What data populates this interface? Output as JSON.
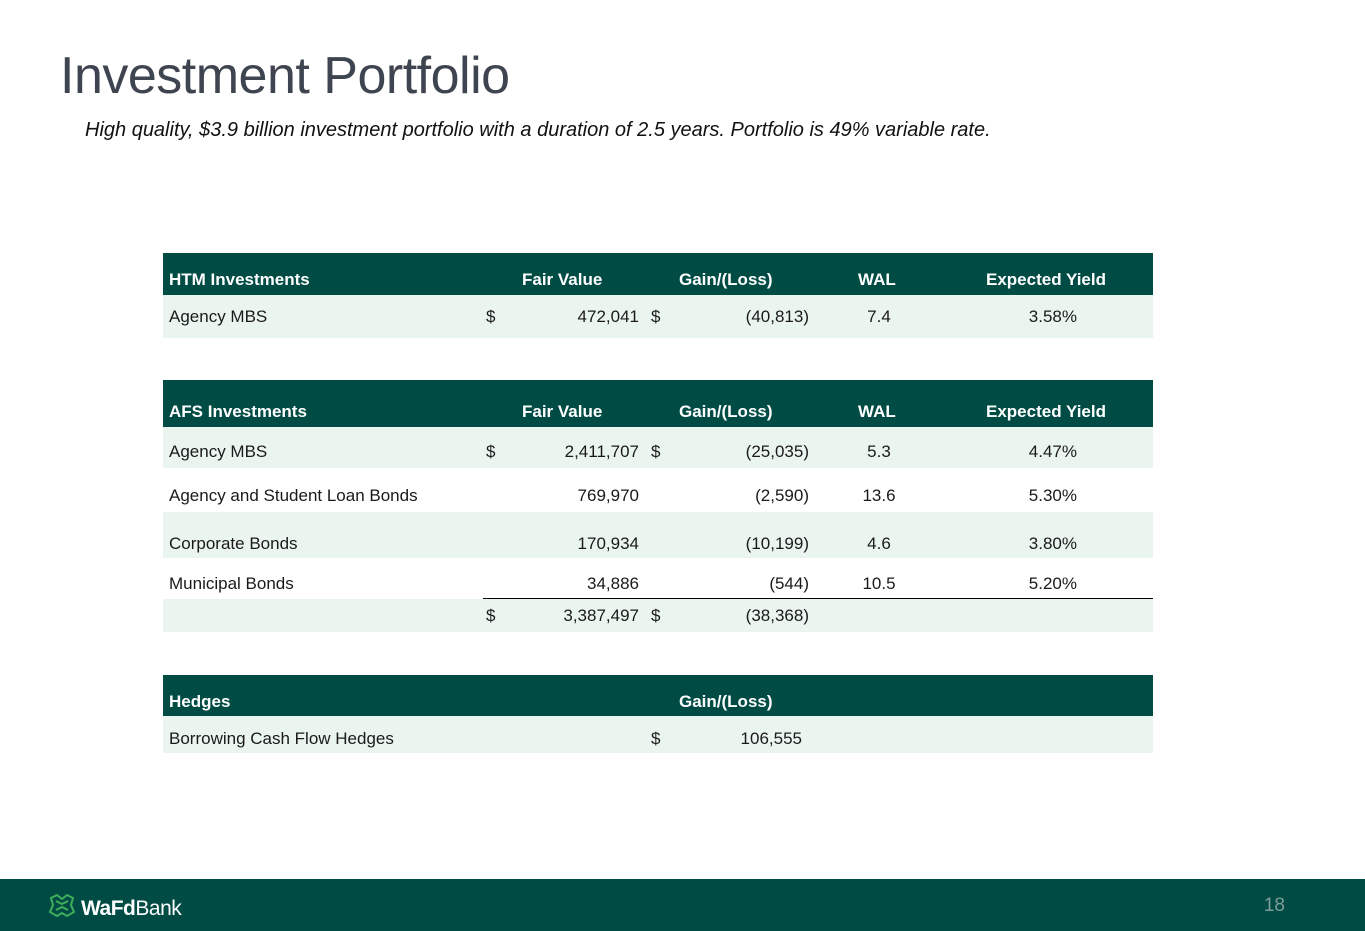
{
  "title": "Investment Portfolio",
  "subtitle": "High quality, $3.9 billion investment portfolio with a duration of 2.5 years.  Portfolio is 49% variable rate.",
  "htm": {
    "header": {
      "name": "HTM Investments",
      "fair_value": "Fair Value",
      "gain_loss": "Gain/(Loss)",
      "wal": "WAL",
      "yield": "Expected Yield"
    },
    "rows": [
      {
        "name": "Agency MBS",
        "fv_dollar": "$",
        "fair_value": "472,041",
        "gl_dollar": "$",
        "gain_loss": "(40,813)",
        "wal": "7.4",
        "yield": "3.58%"
      }
    ]
  },
  "afs": {
    "header": {
      "name": "AFS Investments",
      "fair_value": "Fair Value",
      "gain_loss": "Gain/(Loss)",
      "wal": "WAL",
      "yield": "Expected Yield"
    },
    "rows": [
      {
        "name": "Agency MBS",
        "fv_dollar": "$",
        "fair_value": "2,411,707",
        "gl_dollar": "$",
        "gain_loss": "(25,035)",
        "wal": "5.3",
        "yield": "4.47%"
      },
      {
        "name": "Agency and Student Loan Bonds",
        "fv_dollar": "",
        "fair_value": "769,970",
        "gl_dollar": "",
        "gain_loss": "(2,590)",
        "wal": "13.6",
        "yield": "5.30%"
      },
      {
        "name": "Corporate Bonds",
        "fv_dollar": "",
        "fair_value": "170,934",
        "gl_dollar": "",
        "gain_loss": "(10,199)",
        "wal": "4.6",
        "yield": "3.80%"
      },
      {
        "name": "Municipal Bonds",
        "fv_dollar": "",
        "fair_value": "34,886",
        "gl_dollar": "",
        "gain_loss": "(544)",
        "wal": "10.5",
        "yield": "5.20%"
      }
    ],
    "total": {
      "fv_dollar": "$",
      "fair_value": "3,387,497",
      "gl_dollar": "$",
      "gain_loss": "(38,368)"
    }
  },
  "hedges": {
    "header": {
      "name": "Hedges",
      "gain_loss": "Gain/(Loss)"
    },
    "rows": [
      {
        "name": "Borrowing Cash Flow Hedges",
        "gl_dollar": "$",
        "gain_loss": "106,555"
      }
    ]
  },
  "footer": {
    "logo_bold": "WaFd",
    "logo_light": "Bank",
    "page_number": "18"
  },
  "colors": {
    "brand_green": "#004c45",
    "row_shade": "#ebf5ef",
    "title_gray": "#3f4550"
  }
}
